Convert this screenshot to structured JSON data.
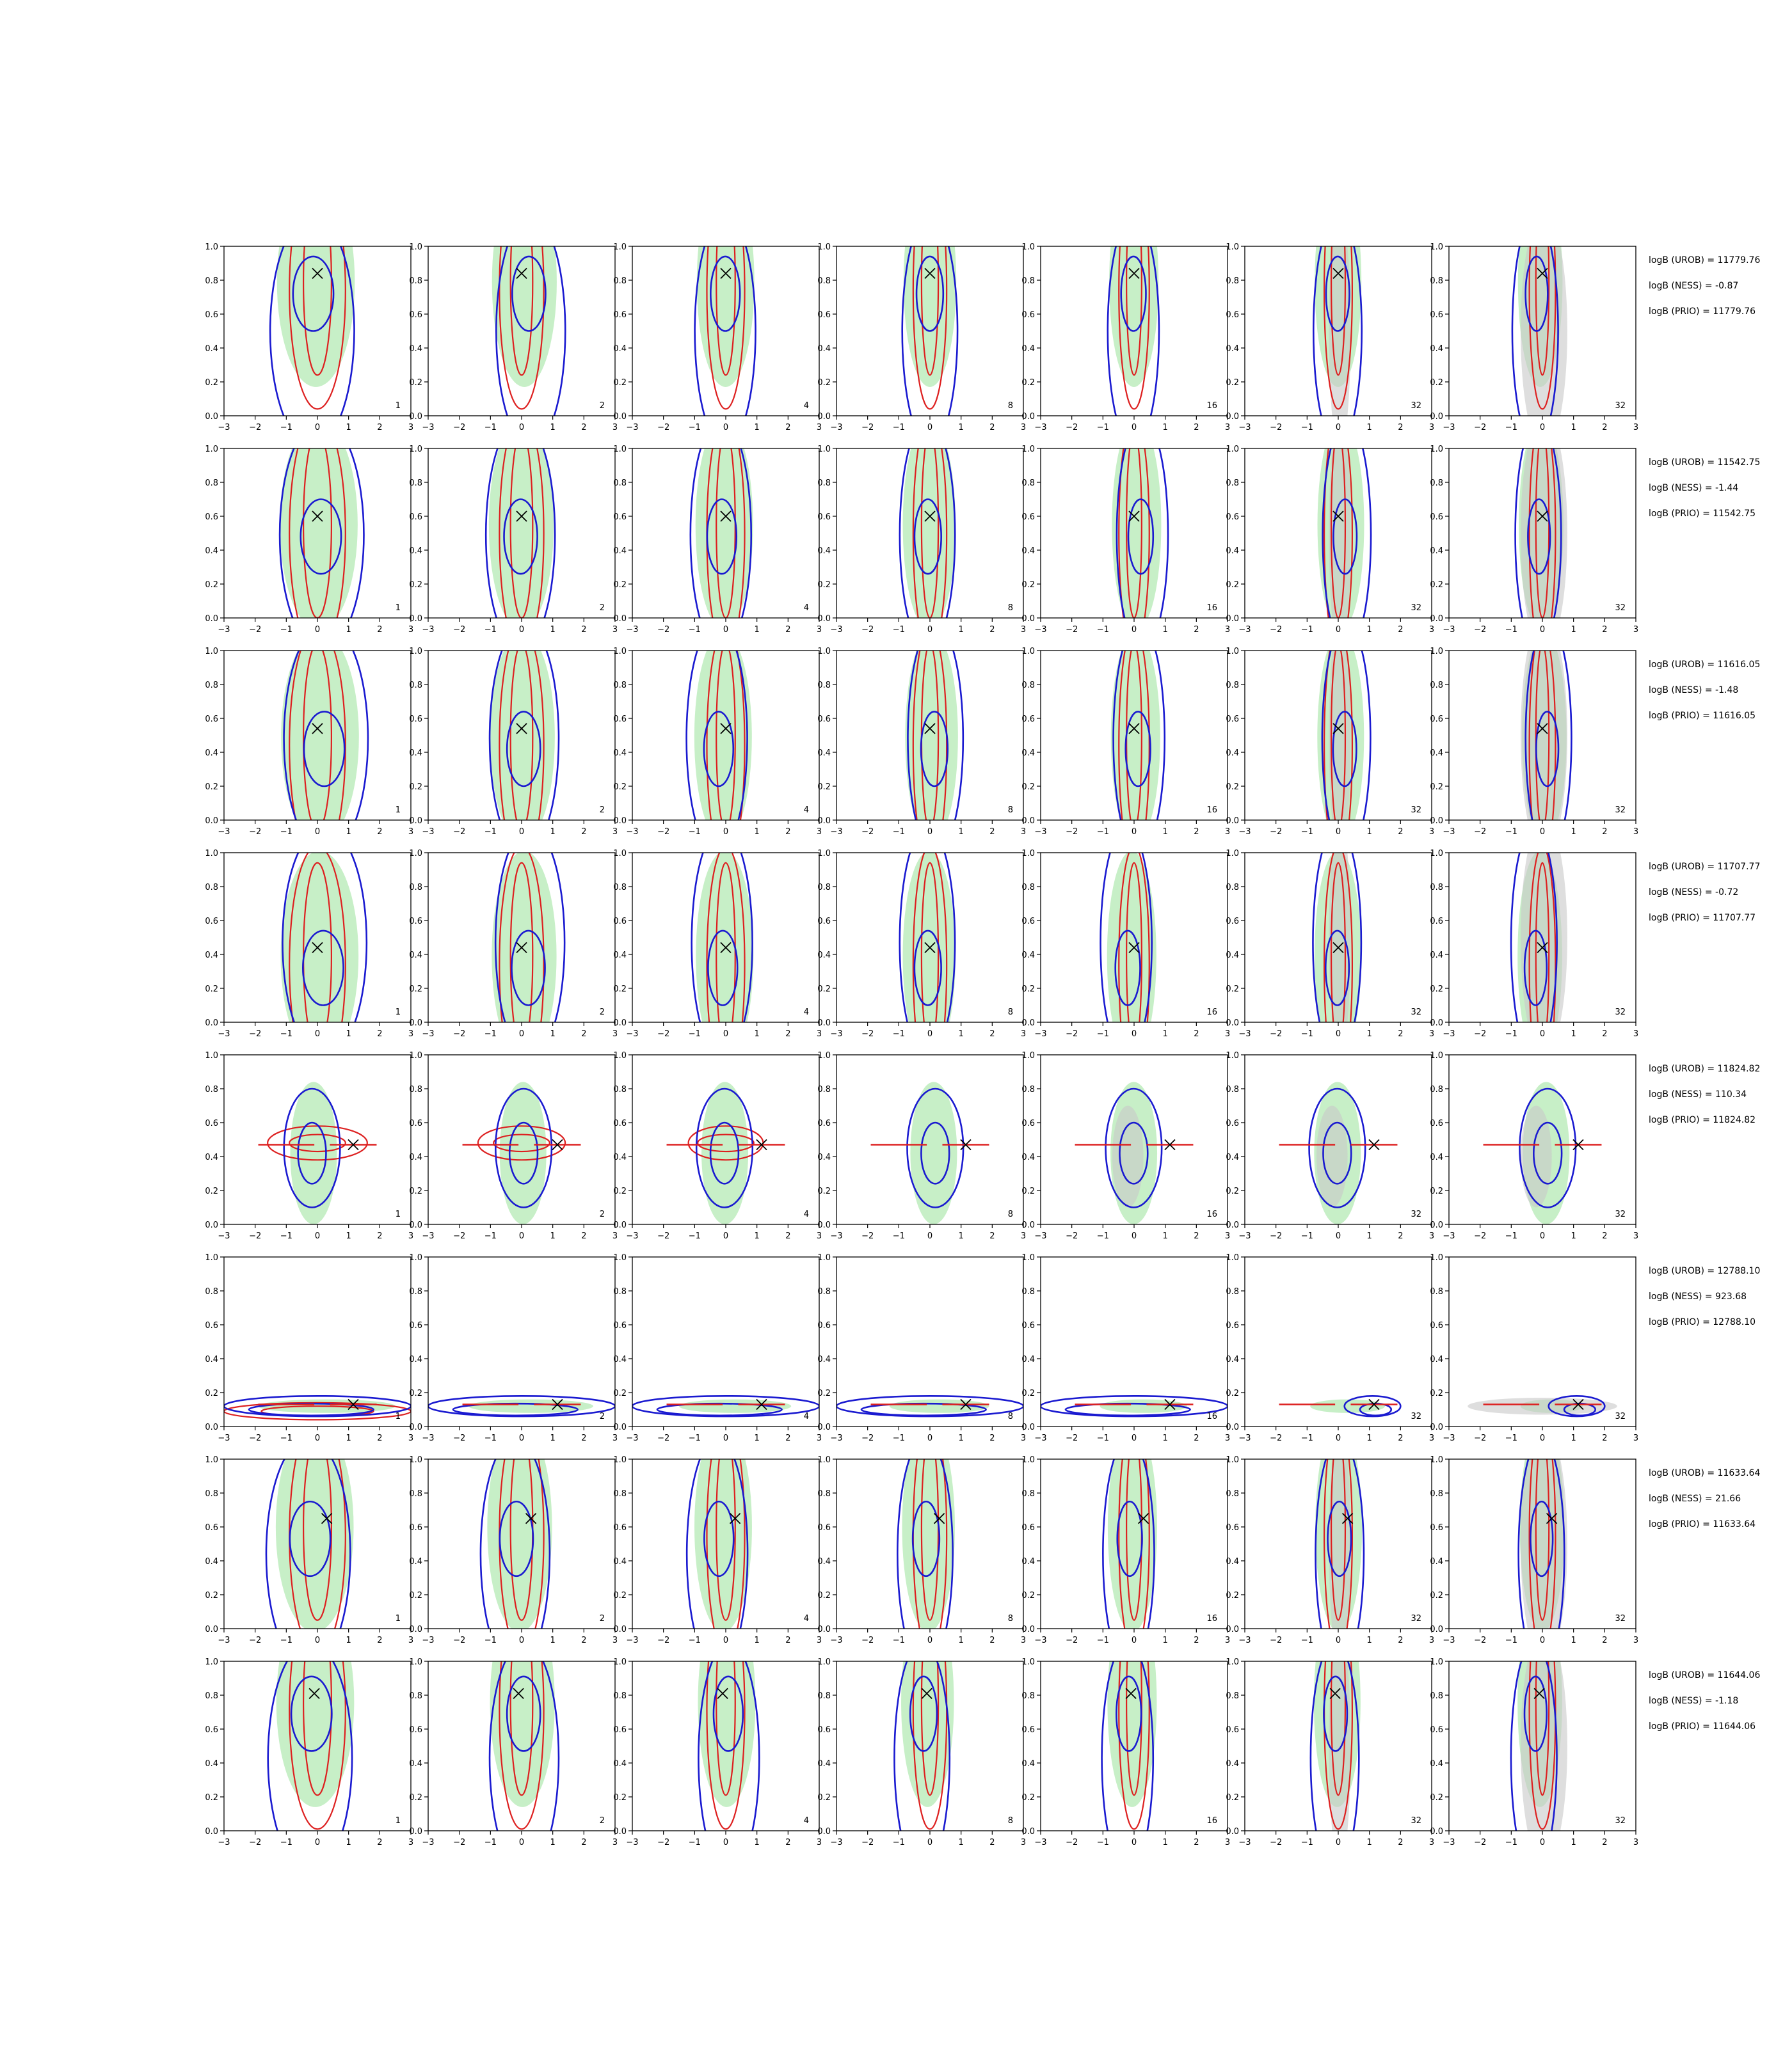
{
  "chart_data": {
    "type": "contour_grid",
    "rows": 8,
    "cols": 7,
    "xlim": [
      -3,
      3
    ],
    "ylim": [
      0,
      1
    ],
    "xticks": [
      "−3",
      "−2",
      "−1",
      "0",
      "1",
      "2",
      "3"
    ],
    "yticks": [
      "0.0",
      "0.2",
      "0.4",
      "0.6",
      "0.8",
      "1.0"
    ],
    "colors": {
      "fill_green": "#b4eab4",
      "fill_gray": "#c8c8c8",
      "contour_red": "#dd2020",
      "contour_blue": "#1a1ad0",
      "marker": "#000000",
      "axis": "#000000"
    },
    "panel_labels": [
      "1",
      "2",
      "4",
      "8",
      "16",
      "32",
      "32"
    ],
    "rows_data": [
      {
        "marker": [
          0.0,
          0.84
        ],
        "kind": "vertical",
        "annotations": [
          "logB (UROB) = 11779.76",
          "logB (NESS) = -0.87",
          "logB (PRIO) = 11779.76"
        ]
      },
      {
        "marker": [
          0.0,
          0.6
        ],
        "kind": "vertical",
        "annotations": [
          "logB (UROB) = 11542.75",
          "logB (NESS) = -1.44",
          "logB (PRIO) = 11542.75"
        ]
      },
      {
        "marker": [
          0.0,
          0.54
        ],
        "kind": "vertical",
        "annotations": [
          "logB (UROB) = 11616.05",
          "logB (NESS) = -1.48",
          "logB (PRIO) = 11616.05"
        ]
      },
      {
        "marker": [
          0.0,
          0.44
        ],
        "kind": "vertical",
        "annotations": [
          "logB (UROB) = 11707.77",
          "logB (NESS) = -0.72",
          "logB (PRIO) = 11707.77"
        ]
      },
      {
        "marker": [
          1.15,
          0.47
        ],
        "kind": "horizontal",
        "annotations": [
          "logB (UROB) = 11824.82",
          "logB (NESS) = 110.34",
          "logB (PRIO) = 11824.82"
        ]
      },
      {
        "marker": [
          1.15,
          0.13
        ],
        "kind": "flat",
        "annotations": [
          "logB (UROB) = 12788.10",
          "logB (NESS) = 923.68",
          "logB (PRIO) = 12788.10"
        ]
      },
      {
        "marker": [
          0.3,
          0.65
        ],
        "kind": "vertical",
        "annotations": [
          "logB (UROB) = 11633.64",
          "logB (NESS) = 21.66",
          "logB (PRIO) = 11633.64"
        ]
      },
      {
        "marker": [
          -0.1,
          0.81
        ],
        "kind": "vertical",
        "annotations": [
          "logB (UROB) = 11644.06",
          "logB (NESS) = -1.18",
          "logB (PRIO) = 11644.06"
        ]
      }
    ]
  }
}
